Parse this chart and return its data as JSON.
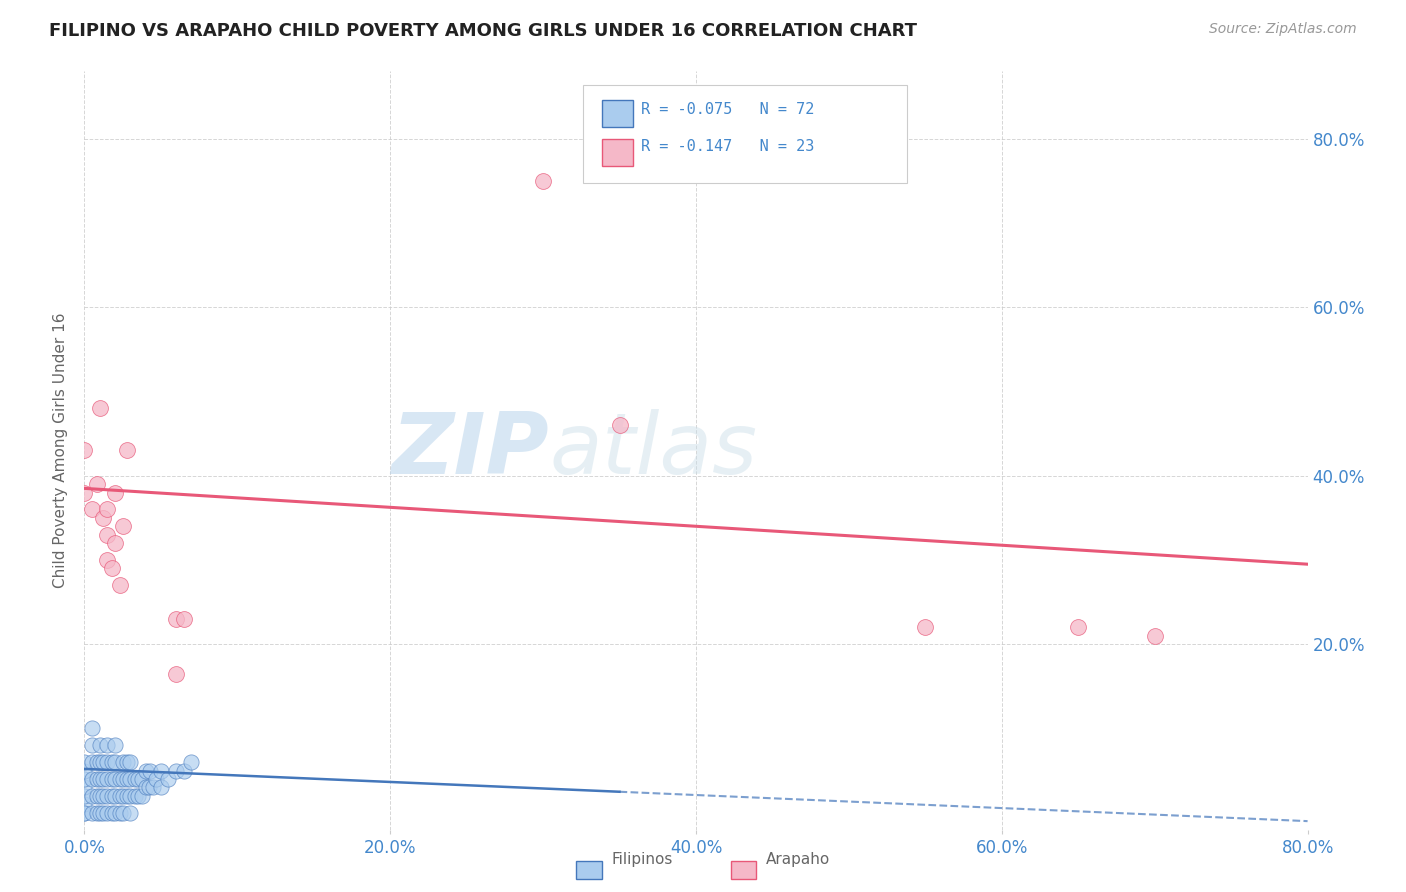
{
  "title": "FILIPINO VS ARAPAHO CHILD POVERTY AMONG GIRLS UNDER 16 CORRELATION CHART",
  "source": "Source: ZipAtlas.com",
  "ylabel": "Child Poverty Among Girls Under 16",
  "xlim": [
    0.0,
    0.8
  ],
  "ylim": [
    -0.02,
    0.88
  ],
  "xtick_labels": [
    "0.0%",
    "20.0%",
    "40.0%",
    "60.0%",
    "80.0%"
  ],
  "xtick_vals": [
    0.0,
    0.2,
    0.4,
    0.6,
    0.8
  ],
  "ytick_labels_right": [
    "80.0%",
    "60.0%",
    "40.0%",
    "20.0%"
  ],
  "ytick_vals": [
    0.8,
    0.6,
    0.4,
    0.2
  ],
  "filipino_color": "#aaccee",
  "arapaho_color": "#f5b8c8",
  "trend_filipino_color": "#4477bb",
  "trend_arapaho_color": "#e85878",
  "watermark_zip": "ZIP",
  "watermark_atlas": "atlas",
  "background_color": "#ffffff",
  "grid_color": "#cccccc",
  "title_color": "#222222",
  "axis_label_color": "#666666",
  "tick_label_color": "#4488cc",
  "legend_color": "#4488cc",
  "filipino_scatter": [
    [
      0.0,
      0.0
    ],
    [
      0.0,
      0.01
    ],
    [
      0.0,
      0.02
    ],
    [
      0.0,
      0.03
    ],
    [
      0.0,
      0.04
    ],
    [
      0.0,
      0.05
    ],
    [
      0.0,
      0.06
    ],
    [
      0.0,
      0.0
    ],
    [
      0.005,
      0.0
    ],
    [
      0.005,
      0.02
    ],
    [
      0.005,
      0.04
    ],
    [
      0.005,
      0.06
    ],
    [
      0.005,
      0.08
    ],
    [
      0.005,
      0.1
    ],
    [
      0.008,
      0.0
    ],
    [
      0.008,
      0.02
    ],
    [
      0.008,
      0.04
    ],
    [
      0.008,
      0.06
    ],
    [
      0.01,
      0.0
    ],
    [
      0.01,
      0.02
    ],
    [
      0.01,
      0.04
    ],
    [
      0.01,
      0.06
    ],
    [
      0.01,
      0.08
    ],
    [
      0.012,
      0.0
    ],
    [
      0.012,
      0.02
    ],
    [
      0.012,
      0.04
    ],
    [
      0.012,
      0.06
    ],
    [
      0.015,
      0.0
    ],
    [
      0.015,
      0.02
    ],
    [
      0.015,
      0.04
    ],
    [
      0.015,
      0.06
    ],
    [
      0.015,
      0.08
    ],
    [
      0.018,
      0.0
    ],
    [
      0.018,
      0.02
    ],
    [
      0.018,
      0.04
    ],
    [
      0.018,
      0.06
    ],
    [
      0.02,
      0.0
    ],
    [
      0.02,
      0.02
    ],
    [
      0.02,
      0.04
    ],
    [
      0.02,
      0.06
    ],
    [
      0.02,
      0.08
    ],
    [
      0.023,
      0.0
    ],
    [
      0.023,
      0.02
    ],
    [
      0.023,
      0.04
    ],
    [
      0.025,
      0.0
    ],
    [
      0.025,
      0.02
    ],
    [
      0.025,
      0.04
    ],
    [
      0.025,
      0.06
    ],
    [
      0.028,
      0.02
    ],
    [
      0.028,
      0.04
    ],
    [
      0.028,
      0.06
    ],
    [
      0.03,
      0.0
    ],
    [
      0.03,
      0.02
    ],
    [
      0.03,
      0.04
    ],
    [
      0.03,
      0.06
    ],
    [
      0.033,
      0.02
    ],
    [
      0.033,
      0.04
    ],
    [
      0.035,
      0.02
    ],
    [
      0.035,
      0.04
    ],
    [
      0.038,
      0.02
    ],
    [
      0.038,
      0.04
    ],
    [
      0.04,
      0.03
    ],
    [
      0.04,
      0.05
    ],
    [
      0.042,
      0.03
    ],
    [
      0.043,
      0.05
    ],
    [
      0.045,
      0.03
    ],
    [
      0.047,
      0.04
    ],
    [
      0.05,
      0.03
    ],
    [
      0.05,
      0.05
    ],
    [
      0.055,
      0.04
    ],
    [
      0.06,
      0.05
    ],
    [
      0.065,
      0.05
    ],
    [
      0.07,
      0.06
    ]
  ],
  "arapaho_scatter": [
    [
      0.0,
      0.38
    ],
    [
      0.0,
      0.43
    ],
    [
      0.005,
      0.36
    ],
    [
      0.008,
      0.39
    ],
    [
      0.01,
      0.48
    ],
    [
      0.012,
      0.35
    ],
    [
      0.015,
      0.3
    ],
    [
      0.015,
      0.33
    ],
    [
      0.015,
      0.36
    ],
    [
      0.018,
      0.29
    ],
    [
      0.02,
      0.32
    ],
    [
      0.02,
      0.38
    ],
    [
      0.023,
      0.27
    ],
    [
      0.025,
      0.34
    ],
    [
      0.028,
      0.43
    ],
    [
      0.06,
      0.165
    ],
    [
      0.06,
      0.23
    ],
    [
      0.065,
      0.23
    ],
    [
      0.3,
      0.75
    ],
    [
      0.35,
      0.46
    ],
    [
      0.55,
      0.22
    ],
    [
      0.65,
      0.22
    ],
    [
      0.7,
      0.21
    ]
  ],
  "trend_fil_x0": 0.0,
  "trend_fil_y0": 0.052,
  "trend_fil_x1": 0.8,
  "trend_fil_y1": -0.01,
  "trend_fil_solid_end": 0.35,
  "trend_ara_x0": 0.0,
  "trend_ara_y0": 0.385,
  "trend_ara_x1": 0.8,
  "trend_ara_y1": 0.295
}
